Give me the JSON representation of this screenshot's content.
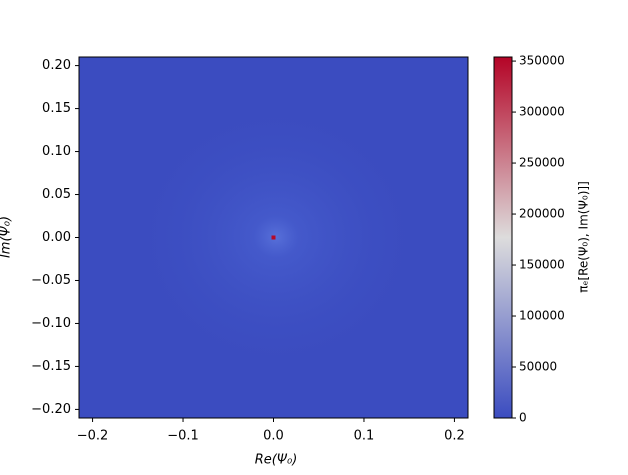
{
  "chart_data": {
    "type": "heatmap",
    "x_label": "Re(Ψ₀)",
    "y_label": "Im(Ψ₀)",
    "colorbar_label": "πₑ[Re(Ψ₀), Im(Ψ₀)]]",
    "x": [
      0
    ],
    "y": [
      0
    ],
    "values": [
      350000
    ],
    "colormap": [
      "#3b4cc0",
      "#dddcdc",
      "#b40426"
    ],
    "xlim": [
      -0.215,
      0.215
    ],
    "ylim": [
      -0.21,
      0.21
    ],
    "clim": [
      0,
      354000
    ],
    "xticks": [
      {
        "value": -0.2,
        "label": "−0.2"
      },
      {
        "value": -0.1,
        "label": "−0.1"
      },
      {
        "value": 0,
        "label": "0.0"
      },
      0.1,
      0.2
    ],
    "yticks": [
      {
        "value": -0.2,
        "label": "−0.20"
      },
      {
        "value": -0.15,
        "label": "−0.15"
      },
      {
        "value": -0.1,
        "label": "−0.10"
      },
      {
        "value": -0.05,
        "label": "−0.05"
      },
      {
        "value": 0,
        "label": "0.00"
      },
      0.05,
      {
        "value": 0.1,
        "label": "0.10"
      },
      0.15,
      {
        "value": 0.2,
        "label": "0.20"
      }
    ],
    "cticks": [
      0,
      50000,
      100000,
      150000,
      200000,
      250000,
      300000,
      350000
    ]
  }
}
